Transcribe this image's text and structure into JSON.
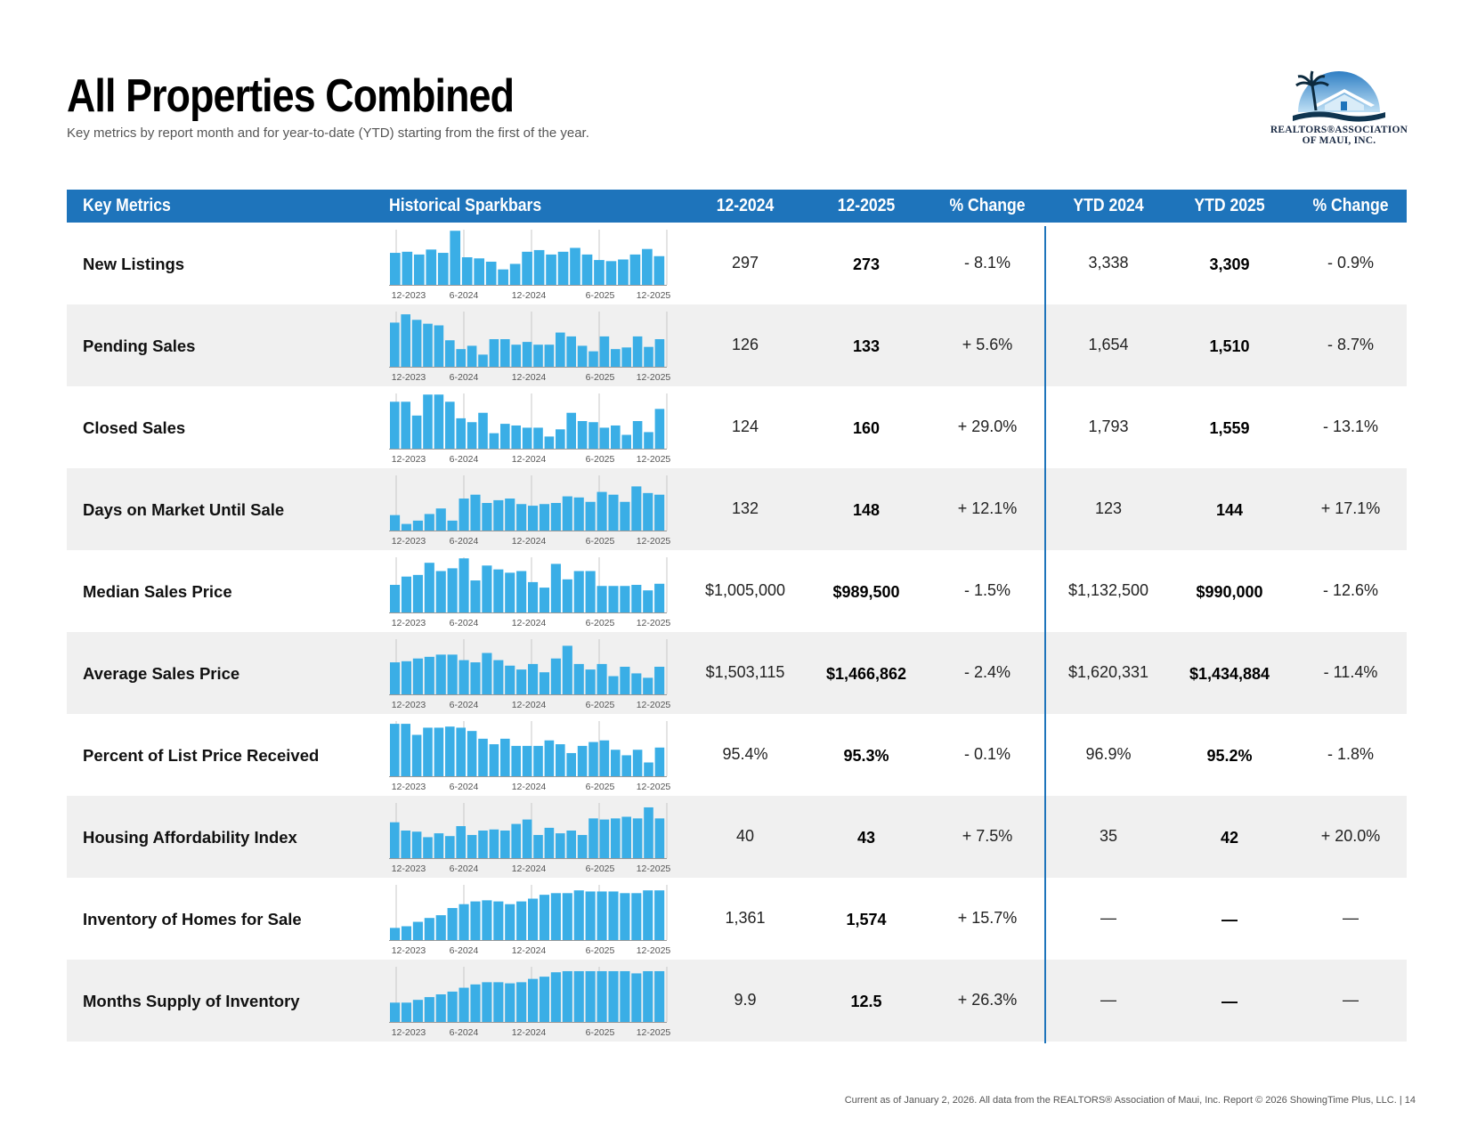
{
  "page": {
    "title": "All Properties Combined",
    "subtitle": "Key metrics by report month and for year-to-date (YTD) starting from the first of the year.",
    "logo_text_line1": "REALTORS®ASSOCIATION",
    "logo_text_line2": "OF MAUI, INC.",
    "footer": "Current as of January 2, 2026. All data from the REALTORS® Association of Maui, Inc. Report © 2026 ShowingTime Plus, LLC.  |  14"
  },
  "colors": {
    "header_bg": "#1e74bb",
    "bar": "#3aaee6",
    "alt_row": "#f0f0f0"
  },
  "icons": {
    "logo": "palm-tree-house-logo"
  },
  "table": {
    "headers": [
      "Key Metrics",
      "Historical Sparkbars",
      "12-2024",
      "12-2025",
      "% Change",
      "YTD 2024",
      "YTD 2025",
      "% Change"
    ],
    "spark_axis_labels": [
      "12-2023",
      "6-2024",
      "12-2024",
      "6-2025",
      "12-2025"
    ],
    "rows": [
      {
        "metric": "New Listings",
        "m2024": "297",
        "m2025": "273",
        "mchg": "- 8.1%",
        "y2024": "3,338",
        "y2025": "3,309",
        "ychg": "- 0.9%",
        "spark": [
          0.58,
          0.6,
          0.55,
          0.64,
          0.58,
          0.98,
          0.5,
          0.48,
          0.42,
          0.28,
          0.38,
          0.6,
          0.63,
          0.55,
          0.6,
          0.67,
          0.55,
          0.45,
          0.43,
          0.46,
          0.55,
          0.65,
          0.52
        ]
      },
      {
        "metric": "Pending Sales",
        "m2024": "126",
        "m2025": "133",
        "mchg": "+ 5.6%",
        "y2024": "1,654",
        "y2025": "1,510",
        "ychg": "- 8.7%",
        "spark": [
          0.8,
          0.95,
          0.85,
          0.78,
          0.75,
          0.48,
          0.32,
          0.38,
          0.22,
          0.5,
          0.5,
          0.4,
          0.45,
          0.4,
          0.4,
          0.62,
          0.55,
          0.38,
          0.28,
          0.55,
          0.32,
          0.35,
          0.55,
          0.36,
          0.5
        ]
      },
      {
        "metric": "Closed Sales",
        "m2024": "124",
        "m2025": "160",
        "mchg": "+ 29.0%",
        "y2024": "1,793",
        "y2025": "1,559",
        "ychg": "- 13.1%",
        "spark": [
          0.85,
          0.85,
          0.6,
          0.98,
          0.98,
          0.85,
          0.55,
          0.48,
          0.65,
          0.28,
          0.45,
          0.42,
          0.38,
          0.38,
          0.22,
          0.35,
          0.65,
          0.5,
          0.48,
          0.38,
          0.42,
          0.25,
          0.5,
          0.3,
          0.72
        ]
      },
      {
        "metric": "Days on Market Until Sale",
        "m2024": "132",
        "m2025": "148",
        "mchg": "+ 12.1%",
        "y2024": "123",
        "y2025": "144",
        "ychg": "+ 17.1%",
        "spark": [
          0.28,
          0.12,
          0.18,
          0.3,
          0.4,
          0.18,
          0.58,
          0.65,
          0.5,
          0.55,
          0.58,
          0.48,
          0.45,
          0.48,
          0.5,
          0.62,
          0.6,
          0.52,
          0.7,
          0.65,
          0.52,
          0.8,
          0.68,
          0.65
        ]
      },
      {
        "metric": "Median Sales Price",
        "m2024": "$1,005,000",
        "m2025": "$989,500",
        "mchg": "- 1.5%",
        "y2024": "$1,132,500",
        "y2025": "$990,000",
        "ychg": "- 12.6%",
        "spark": [
          0.5,
          0.65,
          0.68,
          0.9,
          0.75,
          0.8,
          0.98,
          0.58,
          0.85,
          0.78,
          0.72,
          0.75,
          0.55,
          0.45,
          0.88,
          0.6,
          0.75,
          0.75,
          0.48,
          0.48,
          0.48,
          0.5,
          0.4,
          0.52
        ]
      },
      {
        "metric": "Average Sales Price",
        "m2024": "$1,503,115",
        "m2025": "$1,466,862",
        "mchg": "- 2.4%",
        "y2024": "$1,620,331",
        "y2025": "$1,434,884",
        "ychg": "- 11.4%",
        "spark": [
          0.58,
          0.6,
          0.65,
          0.68,
          0.72,
          0.72,
          0.62,
          0.58,
          0.75,
          0.62,
          0.52,
          0.45,
          0.55,
          0.4,
          0.65,
          0.88,
          0.55,
          0.45,
          0.55,
          0.33,
          0.5,
          0.38,
          0.3,
          0.5
        ]
      },
      {
        "metric": "Percent of List Price Received",
        "m2024": "95.4%",
        "m2025": "95.3%",
        "mchg": "- 0.1%",
        "y2024": "96.9%",
        "y2025": "95.2%",
        "ychg": "- 1.8%",
        "spark": [
          0.95,
          0.95,
          0.75,
          0.88,
          0.88,
          0.9,
          0.88,
          0.82,
          0.68,
          0.58,
          0.68,
          0.55,
          0.55,
          0.55,
          0.65,
          0.58,
          0.42,
          0.55,
          0.62,
          0.65,
          0.48,
          0.38,
          0.48,
          0.25,
          0.52
        ]
      },
      {
        "metric": "Housing Affordability Index",
        "m2024": "40",
        "m2025": "43",
        "mchg": "+ 7.5%",
        "y2024": "35",
        "y2025": "42",
        "ychg": "+ 20.0%",
        "spark": [
          0.65,
          0.5,
          0.48,
          0.38,
          0.45,
          0.4,
          0.58,
          0.42,
          0.5,
          0.52,
          0.5,
          0.62,
          0.7,
          0.42,
          0.55,
          0.45,
          0.5,
          0.42,
          0.72,
          0.7,
          0.72,
          0.75,
          0.72,
          0.92,
          0.72
        ]
      },
      {
        "metric": "Inventory of Homes for Sale",
        "m2024": "1,361",
        "m2025": "1,574",
        "mchg": "+ 15.7%",
        "y2024": "—",
        "y2025": "—",
        "ychg": "—",
        "spark": [
          0.22,
          0.25,
          0.33,
          0.4,
          0.45,
          0.58,
          0.65,
          0.7,
          0.72,
          0.7,
          0.65,
          0.7,
          0.75,
          0.82,
          0.85,
          0.85,
          0.9,
          0.88,
          0.88,
          0.88,
          0.85,
          0.85,
          0.9,
          0.9
        ]
      },
      {
        "metric": "Months Supply of Inventory",
        "m2024": "9.9",
        "m2025": "12.5",
        "mchg": "+ 26.3%",
        "y2024": "—",
        "y2025": "—",
        "ychg": "—",
        "spark": [
          0.35,
          0.35,
          0.4,
          0.45,
          0.5,
          0.55,
          0.62,
          0.68,
          0.72,
          0.72,
          0.7,
          0.72,
          0.78,
          0.82,
          0.9,
          0.92,
          0.92,
          0.92,
          0.92,
          0.92,
          0.92,
          0.88,
          0.92,
          0.92
        ]
      }
    ]
  }
}
